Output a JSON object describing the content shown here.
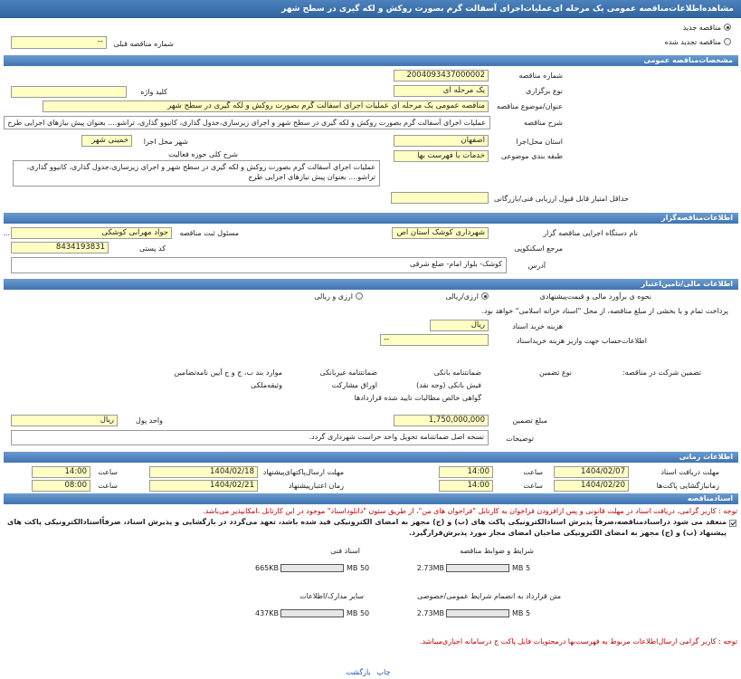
{
  "header": {
    "title": "مشاهده‌اطلاعات‌مناقصه عمومی یک مرحله ای‌عملیات‌اجرای آسفالت گرم بصورت روکش و لکه گیری در سطح شهر"
  },
  "tender_kind": {
    "options": [
      {
        "label": "مناقصه جدید",
        "checked": true
      },
      {
        "label": "مناقصه تجدید شده",
        "checked": false
      }
    ],
    "previous_number_label": "شماره مناقصه قبلی",
    "previous_number": "--"
  },
  "general": {
    "title": "مشخصات‌مناقصه عمومی",
    "fields": {
      "number_label": "شماره مناقصه",
      "number": "2004093437000002",
      "type_label": "نوع برگزاری",
      "type": "یک مرحله ای",
      "keyword_label": "کلید واژه",
      "subject_label": "عنوان/موضوع مناقصه",
      "subject": "مناقصه عمومی یک مرحله ای عملیات  اجرای آسفالت گرم بصورت روکش و لکه گیری در سطح شهر",
      "description_label": "شرح مناقصه",
      "description": "عملیات  اجرای آسفالت گرم بصورت روکش و لکه گیری  در  سطح شهر و اجرای زیرسازی،جدول گذاری، کانیوو گذاری، تراشو.... بعنوان پیش نیازهای اجرایی طرح",
      "province_label": "استان محل‌اجرا",
      "province": "اصفهان",
      "city_label": "شهر محل اجرا",
      "city": "خمینی شهر",
      "category_label": "طبقه بندی موضوعی",
      "category": "خدمات با فهرست بها",
      "scope_label": "شرح کلی حوزه فعالیت",
      "scope": "عملیات  اجرای آسفالت گرم بصورت روکش و لکه گیری  در  سطح شهر و اجرای زیرسازی،جدول گذاری، کانیوو گذاری، تراشو.... بعنوان پیش نیازهای اجرایی طرح",
      "min_score_label": "حداقل امتیاز قابل قبول ارزیابی فنی/بازرگانی"
    }
  },
  "organizer": {
    "title": "اطلاعات‌مناقصه‌گزار",
    "agency_label": "نام دستگاه اجرایی مناقصه گزار",
    "agency": "شهرداری کوشک استان اص",
    "registrar_label": "مسئول ثبت مناقصه",
    "registrar": "جواد مهرابی کوشکی",
    "registrar_more": "...",
    "reference_label": "مرجع اسکنکوپی",
    "postal_label": "کد پستی",
    "postal_code": "8434193831",
    "address_label": "آدرس",
    "address": "کوشک- بلوار امام- ضلع شرقی"
  },
  "finance": {
    "title": "اطلاعات مالی/تامین‌اعتبار",
    "estimate_label": "نحوه ی برآورد مالی و قیمت‌پیشنهادی",
    "estimate_options": [
      {
        "label": "ارزی/ریالی",
        "checked": true
      },
      {
        "label": "ارزی و ریالی",
        "checked": false
      }
    ],
    "treasury": {
      "label": "پرداخت تمام و یا بخشی از مبلغ مناقصه، از محل \"اسناد خزانه اسلامی\" خواهد بود.",
      "checked": false
    },
    "doc_fee_label": "هزینه خرید اسناد",
    "doc_fee_unit": "ریال",
    "account_label": "اطلاعات‌حساب جهت واریز هزینه خریداسناد",
    "account": "--",
    "guarantee_label": "تضمین شرکت در مناقصه:",
    "guarantee_type_label": "نوع تضمین",
    "guarantee_options": [
      {
        "label": "ضمانتنامه بانکی",
        "checked": true
      },
      {
        "label": "ضمانتنامه غیربانکی",
        "checked": false
      },
      {
        "label": "موارد بند ب، ج و ح آیین نامه‌تضامین",
        "checked": false
      },
      {
        "label": "فیش بانکی (وجه نقد)",
        "checked": true
      },
      {
        "label": "اوراق مشارکت",
        "checked": false
      },
      {
        "label": "وثیقه‌ملکی",
        "checked": false
      },
      {
        "label": "گواهی خالص مطالبات تایید شده قراردادها",
        "checked": true
      }
    ],
    "amount_label": "مبلغ تضمین",
    "amount": "1,750,000,000",
    "currency_label": "واحد پول",
    "currency": "ریال",
    "notes_label": "توضیحات",
    "notes": "نسخه اصل ضمانتنامه تحویل واحد حراست شهرداری گردد."
  },
  "timing": {
    "title": "اطلاعات زمانی",
    "rows": [
      {
        "label": "مهلت دریافت اسناد",
        "date": "1404/02/07",
        "time_label": "ساعت",
        "time": "14:00"
      },
      {
        "label": "مهلت ارسال‌پاکتهای‌پیشنهاد",
        "date": "1404/02/18",
        "time_label": "ساعت",
        "time": "14:00"
      },
      {
        "label": "زمانبازگشایی پاکت‌ها",
        "date": "1404/02/20",
        "time_label": "ساعت",
        "time": "14:00"
      },
      {
        "label": "زمان اعتبارپیشنهاد",
        "date": "1404/02/21",
        "time_label": "ساعت",
        "time": "08:00"
      }
    ]
  },
  "documents": {
    "title": "اسنادمناقصه",
    "notice": "توجه : کاربر گرامی، دریافت اسناد در مهلت قانونی و پس ازافزودن فراخوان به کارتابل \"فراخوان های من\"، از طریق  ستون \"دانلوداسناد\" موجود در این کارتابل ،امکانپذیر می‌باشد.",
    "commitment": {
      "label": "منعقد می شود دراسنادمناقصه،صرفاً پذیرش اسنادالکترونیکی پاکت های (ب) و (ج) مجهز به امضای الکترونیکی قید شده باشد، تعهد می‌گردد در بازگشایی و پذیرش اسناد، صرفاًاسنادالکترونیکی پاکت های پیشنهاد (ب) و (ج) مجهز به امضای الکترونیکی صاحبان امضای مجاز مورد پذیرش‌قرارگیرد.",
      "checked": true
    },
    "files": [
      {
        "title": "اسناد فنی",
        "size": "665KB",
        "max": "50 MB"
      },
      {
        "title": "شرایط و ضوابط مناقصه",
        "size": "2.73MB",
        "max": "5 MB"
      },
      {
        "title": "سایر مدارک/اطلاعات",
        "size": "437KB",
        "max": "50 MB"
      },
      {
        "title": "متن قرارداد به انضمام شرایط عمومی/خصوصی",
        "size": "2.73MB",
        "max": "5 MB"
      }
    ],
    "footer_notice": "توجه : کاربر گرامی ارسال‌اطلاعات مربوط به فهرست‌بها  درمحتویات فایل پاکت ج  درسامانه اجباری‌میباشد.",
    "links": [
      "چاپ",
      "بازگشت"
    ]
  }
}
